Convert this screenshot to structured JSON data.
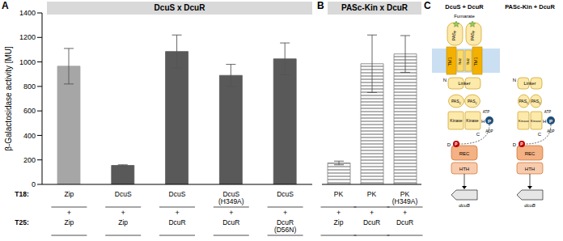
{
  "chart_data": [
    {
      "panel": "A",
      "type": "bar",
      "title": "DcuS x DcuR",
      "y_label": "β-Galactosidase activity [MU]",
      "row_labels": [
        "T18:",
        "T25:"
      ],
      "joiner": "+",
      "categories": [
        "Zip",
        "DcuS",
        "DcuS",
        "DcuS (H349A)",
        "DcuS"
      ],
      "categories_t25": [
        "Zip",
        "Zip",
        "DcuR",
        "DcuR",
        "DcuR (D56N)"
      ],
      "values": [
        965,
        155,
        1085,
        890,
        1025
      ],
      "errors": [
        145,
        5,
        135,
        90,
        130
      ],
      "colors": [
        "#a6a6a6",
        "#595959",
        "#595959",
        "#595959",
        "#595959"
      ],
      "ylim": [
        0,
        1400
      ],
      "yticks": [
        0,
        200,
        400,
        600,
        800,
        1000,
        1200,
        1400
      ],
      "grid": false
    },
    {
      "panel": "B",
      "type": "bar",
      "title": "PASc-Kin x DcuR",
      "joiner": "+",
      "categories": [
        "PK",
        "PK",
        "PK (H349A)"
      ],
      "categories_t25": [
        "Zip",
        "DcuR",
        "DcuR"
      ],
      "values": [
        175,
        985,
        1065
      ],
      "errors": [
        15,
        235,
        150
      ],
      "color": "#7f7f7f",
      "ylim": [
        0,
        1400
      ],
      "tick_labels": "x",
      "grid": false
    }
  ],
  "diagram": {
    "panel": "C",
    "sensors": [
      {
        "title": "DcuS + DcuR",
        "ligand": "Fumarate",
        "pas_p": {
          "base": "PAS",
          "sub": "P"
        },
        "tm1": "TM1",
        "tm2": "TM2",
        "n_term": "N",
        "linker": "Linker",
        "pas_c": {
          "base": "PAS",
          "sub": "C"
        },
        "kinase": "Kinase",
        "his": "H",
        "phospho": "P",
        "atp": "ATP",
        "adp": "ADP",
        "c_term": "C",
        "asp": "D",
        "rec": "REC",
        "hth": "HTH",
        "gene": "dcuB"
      },
      {
        "title": "PASc-Kin + DcuR",
        "n_term": "N",
        "linker": "Linker",
        "pas_c": {
          "base": "PAS",
          "sub": "C"
        },
        "kinase": "Kinase",
        "his": "H",
        "phospho": "P",
        "atp": "ATP",
        "adp": "ADP",
        "c_term": "C",
        "asp": "D",
        "rec": "REC",
        "hth": "HTH",
        "gene": "dcuB"
      }
    ]
  }
}
